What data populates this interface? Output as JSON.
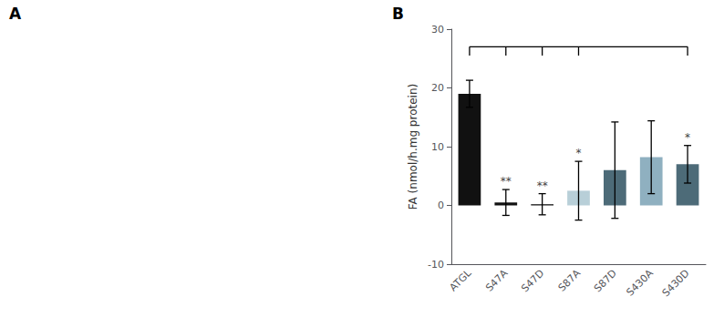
{
  "chart_data": {
    "type": "bar",
    "panel_labels": [
      "A",
      "B"
    ],
    "categories": [
      "ATGL",
      "S47A",
      "S47D",
      "S87A",
      "S87D",
      "S430A",
      "S430D"
    ],
    "values": [
      19.0,
      0.5,
      0.2,
      2.5,
      6.0,
      8.2,
      7.0
    ],
    "errors": [
      2.3,
      2.2,
      1.8,
      5.0,
      8.2,
      6.2,
      3.2
    ],
    "colors": [
      "#111111",
      "#111111",
      "#111111",
      "#b8cfd8",
      "#4d6b78",
      "#8fb0c0",
      "#4d6b78"
    ],
    "significance": [
      null,
      "**",
      "**",
      "*",
      null,
      null,
      "*"
    ],
    "ylabel": "FA (nmol/h.mg protein)",
    "ylim": [
      -10,
      30
    ],
    "yticks": [
      -10,
      0,
      10,
      20,
      30
    ],
    "bracket": {
      "y": 27.0,
      "drop": 1.5,
      "span": [
        "ATGL",
        "S430D"
      ],
      "drops_at": [
        "ATGL",
        "S47A",
        "S47D",
        "S87A",
        "S430D"
      ]
    },
    "grid": false
  }
}
